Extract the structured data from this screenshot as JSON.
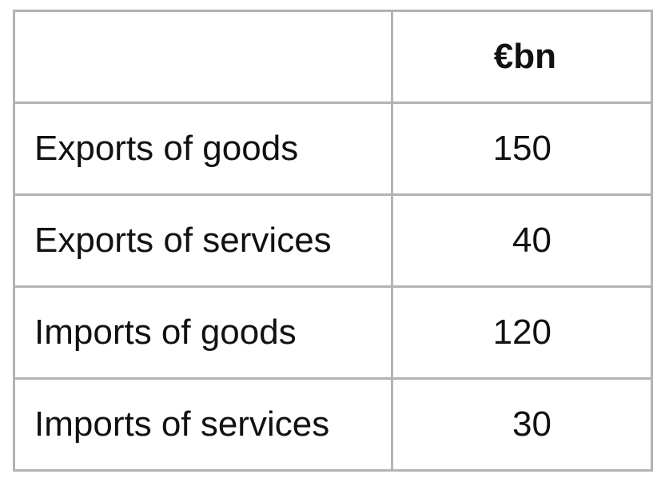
{
  "table": {
    "header": {
      "label": "",
      "unit": "€bn"
    },
    "rows": [
      {
        "label": "Exports of goods",
        "value": "150"
      },
      {
        "label": "Exports of services",
        "value": "40"
      },
      {
        "label": "Imports of goods",
        "value": "120"
      },
      {
        "label": "Imports of services",
        "value": "30"
      }
    ]
  },
  "chart_data": {
    "type": "table",
    "columns": [
      "",
      "€bn"
    ],
    "rows": [
      [
        "Exports of goods",
        150
      ],
      [
        "Exports of services",
        40
      ],
      [
        "Imports of goods",
        120
      ],
      [
        "Imports of services",
        30
      ]
    ]
  }
}
